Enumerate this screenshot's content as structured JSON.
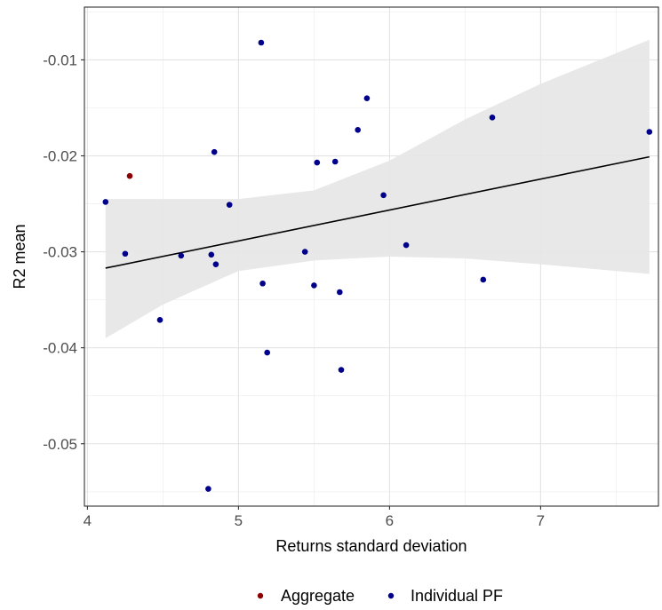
{
  "chart_data": {
    "type": "scatter",
    "xlabel": "Returns standard deviation",
    "ylabel": "R2 mean",
    "xlim": [
      3.98,
      7.78
    ],
    "ylim": [
      -0.0565,
      -0.0045
    ],
    "x_ticks": [
      4,
      5,
      6,
      7
    ],
    "x_tick_labels": [
      "4",
      "5",
      "6",
      "7"
    ],
    "y_ticks": [
      -0.05,
      -0.04,
      -0.03,
      -0.02,
      -0.01
    ],
    "y_tick_labels": [
      "-0.05",
      "-0.04",
      "-0.03",
      "-0.02",
      "-0.01"
    ],
    "grid": true,
    "legend_position": "bottom",
    "series": [
      {
        "name": "Aggregate",
        "color": "#8b0000",
        "points": [
          [
            4.28,
            -0.0221
          ]
        ]
      },
      {
        "name": "Individual PF",
        "color": "#00008b",
        "points": [
          [
            4.12,
            -0.0248
          ],
          [
            4.25,
            -0.0302
          ],
          [
            4.48,
            -0.0371
          ],
          [
            4.62,
            -0.0304
          ],
          [
            4.8,
            -0.0547
          ],
          [
            4.82,
            -0.0303
          ],
          [
            4.84,
            -0.0196
          ],
          [
            4.85,
            -0.0313
          ],
          [
            4.94,
            -0.0251
          ],
          [
            5.15,
            -0.0082
          ],
          [
            5.16,
            -0.0333
          ],
          [
            5.19,
            -0.0405
          ],
          [
            5.44,
            -0.03
          ],
          [
            5.5,
            -0.0335
          ],
          [
            5.52,
            -0.0207
          ],
          [
            5.64,
            -0.0206
          ],
          [
            5.67,
            -0.0342
          ],
          [
            5.68,
            -0.0423
          ],
          [
            5.79,
            -0.0173
          ],
          [
            5.85,
            -0.014
          ],
          [
            5.96,
            -0.0241
          ],
          [
            6.11,
            -0.0293
          ],
          [
            6.62,
            -0.0329
          ],
          [
            6.68,
            -0.016
          ],
          [
            7.72,
            -0.0175
          ]
        ]
      }
    ],
    "trend": {
      "type": "linear-fit",
      "color": "#000000",
      "line": [
        [
          4.12,
          -0.0317
        ],
        [
          7.72,
          -0.0201
        ]
      ],
      "band_color": "#e6e6e6",
      "band_upper": [
        [
          4.12,
          -0.0245
        ],
        [
          5.0,
          -0.0245
        ],
        [
          5.5,
          -0.0236
        ],
        [
          6.0,
          -0.0205
        ],
        [
          6.5,
          -0.0162
        ],
        [
          7.0,
          -0.0125
        ],
        [
          7.72,
          -0.0079
        ]
      ],
      "band_lower": [
        [
          4.12,
          -0.039
        ],
        [
          4.5,
          -0.0355
        ],
        [
          5.0,
          -0.032
        ],
        [
          5.5,
          -0.0309
        ],
        [
          6.0,
          -0.0305
        ],
        [
          6.5,
          -0.0307
        ],
        [
          7.0,
          -0.0313
        ],
        [
          7.72,
          -0.0323
        ]
      ]
    }
  },
  "legend": {
    "items": [
      {
        "label": "Aggregate",
        "color": "#8b0000"
      },
      {
        "label": "Individual PF",
        "color": "#00008b"
      }
    ]
  }
}
